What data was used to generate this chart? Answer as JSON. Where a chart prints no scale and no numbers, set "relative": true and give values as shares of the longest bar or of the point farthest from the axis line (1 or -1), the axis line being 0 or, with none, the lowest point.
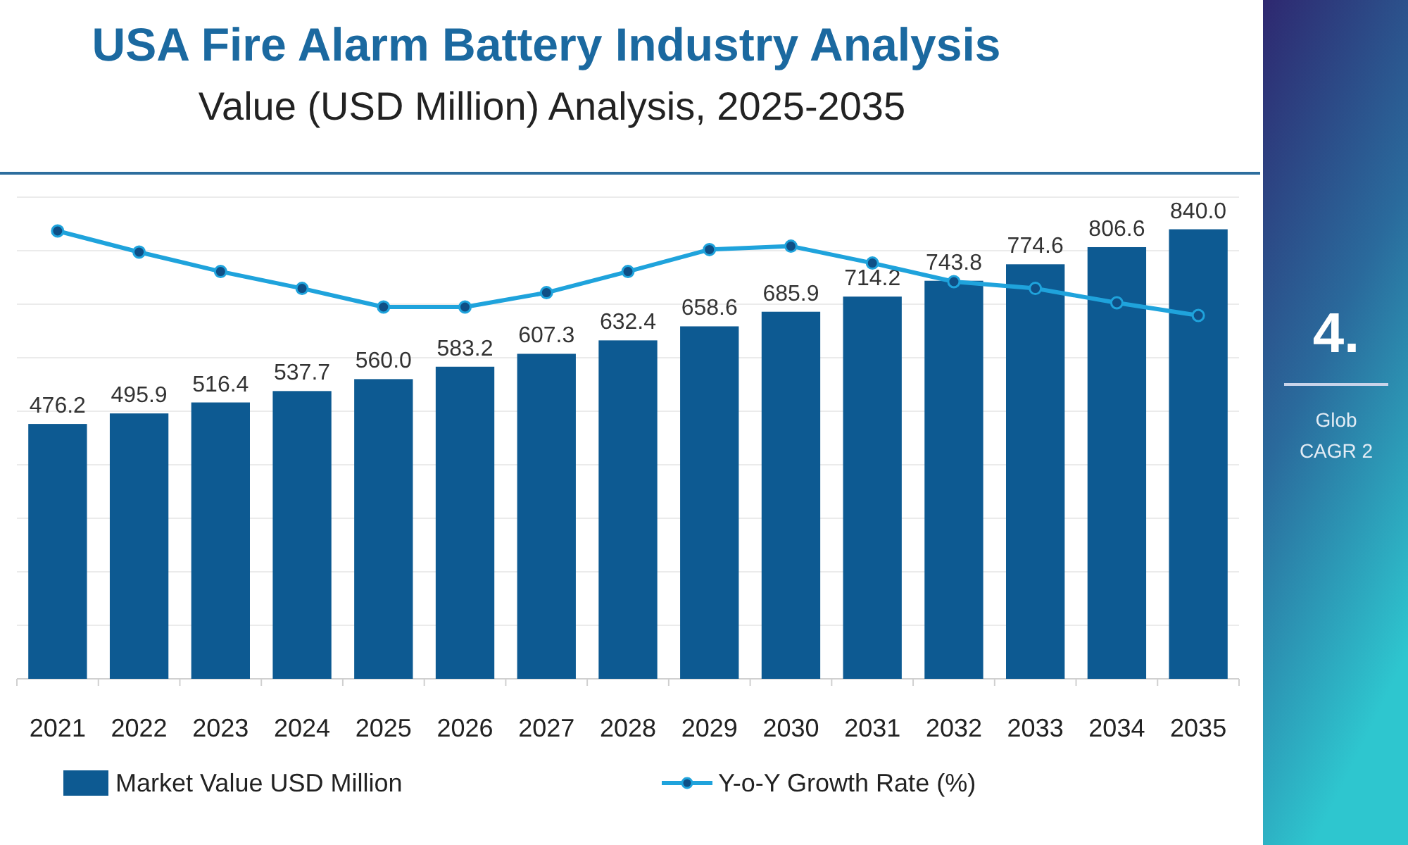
{
  "chart_data": [
    {
      "type": "bar",
      "title": "USA Fire Alarm Battery Industry Analysis",
      "subtitle": "Value (USD Million) Analysis, 2025-2035",
      "categories": [
        "2021",
        "2022",
        "2023",
        "2024",
        "2025",
        "2026",
        "2027",
        "2028",
        "2029",
        "2030",
        "2031",
        "2032",
        "2033",
        "2034",
        "2035"
      ],
      "series": [
        {
          "name": "Market Value USD Million",
          "color": "#0d5a92",
          "values": [
            476.2,
            495.9,
            516.4,
            537.7,
            560.0,
            583.2,
            607.3,
            632.4,
            658.6,
            685.9,
            714.2,
            743.8,
            774.6,
            806.6,
            840.0
          ],
          "value_labels": [
            "476.2",
            "495.9",
            "516.4",
            "537.7",
            "560.0",
            "583.2",
            "607.3",
            "632.4",
            "658.6",
            "685.9",
            "714.2",
            "743.8",
            "774.6",
            "806.6",
            "840.0"
          ]
        }
      ],
      "ylim": [
        0,
        900
      ],
      "yticks": [
        {
          "value": 0,
          "label": null
        },
        {
          "value": 100,
          "label": null
        },
        {
          "value": 200,
          "label": null
        },
        {
          "value": 300,
          "label": null
        },
        {
          "value": 400,
          "label": null
        },
        {
          "value": 500,
          "label": null
        },
        {
          "value": 600,
          "label": null
        },
        {
          "value": 700,
          "label": null
        },
        {
          "value": 800,
          "label": null
        },
        {
          "value": 900,
          "label": null
        }
      ],
      "grid": "y",
      "tick_labels": "x",
      "legend": "bottom",
      "annotations": [
        "4.",
        "Glob",
        "CAGR 2"
      ]
    },
    {
      "type": "line",
      "relative": true,
      "categories": [
        null,
        null,
        null,
        null,
        null,
        null,
        null,
        null,
        null,
        null,
        null,
        null,
        null,
        null,
        null
      ],
      "series": [
        {
          "name": "Y-o-Y Growth Rate (%)",
          "color": "#1fa3dc",
          "values": [
            1.0,
            0.75,
            0.52,
            0.32,
            0.1,
            0.1,
            0.27,
            0.52,
            0.78,
            0.82,
            0.62,
            0.4,
            0.32,
            0.15,
            0.0
          ]
        }
      ],
      "legend": "bottom",
      "marker": "circle"
    }
  ]
}
